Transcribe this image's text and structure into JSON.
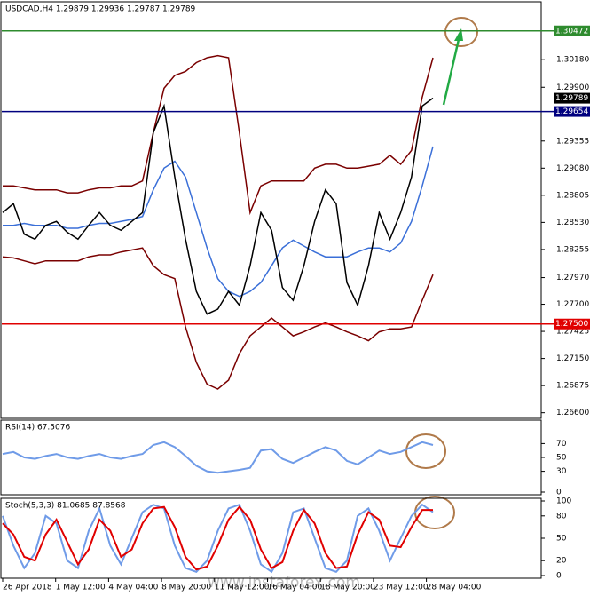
{
  "chart_data": [
    {
      "type": "line",
      "title": "USDCAD,H4  1.29879 1.29936 1.29787 1.29789",
      "ylim": [
        1.2657,
        1.3074
      ],
      "yticks": [
        {
          "value": 1.3018,
          "label": "1.30180"
        },
        {
          "value": 1.299,
          "label": "1.29900"
        },
        {
          "value": 1.29355,
          "label": "1.29355"
        },
        {
          "value": 1.2908,
          "label": "1.29080"
        },
        {
          "value": 1.28805,
          "label": "1.28805"
        },
        {
          "value": 1.2853,
          "label": "1.28530"
        },
        {
          "value": 1.28255,
          "label": "1.28255"
        },
        {
          "value": 1.2797,
          "label": "1.27970"
        },
        {
          "value": 1.277,
          "label": "1.27700"
        },
        {
          "value": 1.27425,
          "label": "1.27425"
        },
        {
          "value": 1.2715,
          "label": "1.27150"
        },
        {
          "value": 1.26875,
          "label": "1.26875"
        },
        {
          "value": 1.266,
          "label": "1.26600"
        }
      ],
      "series": [
        {
          "color": "#7a0000",
          "values": [
            1.289,
            1.289,
            1.2888,
            1.2886,
            1.2886,
            1.2886,
            1.2883,
            1.2883,
            1.2886,
            1.2888,
            1.2888,
            1.289,
            1.289,
            1.2895,
            1.2944,
            1.2989,
            1.3002,
            1.3006,
            1.3015,
            1.302,
            1.3022,
            1.302,
            1.2944,
            1.2863,
            1.289,
            1.2895,
            1.2895,
            1.2895,
            1.2895,
            1.2908,
            1.2912,
            1.2912,
            1.2908,
            1.2908,
            1.291,
            1.2912,
            1.2921,
            1.2912,
            1.2926,
            1.298,
            1.302
          ]
        },
        {
          "color": "#7a0000",
          "values": [
            1.2818,
            1.2817,
            1.2814,
            1.2811,
            1.2814,
            1.2814,
            1.2814,
            1.2814,
            1.2818,
            1.282,
            1.282,
            1.2823,
            1.2825,
            1.2827,
            1.2809,
            1.28,
            1.2796,
            1.2747,
            1.2711,
            1.2689,
            1.2684,
            1.2693,
            1.272,
            1.2738,
            1.2747,
            1.2756,
            1.2747,
            1.2738,
            1.2742,
            1.2747,
            1.2751,
            1.2747,
            1.2742,
            1.2738,
            1.2733,
            1.2742,
            1.2745,
            1.2745,
            1.2747,
            1.2774,
            1.28
          ]
        },
        {
          "color": "#3a6fd8",
          "values": [
            1.285,
            1.285,
            1.2852,
            1.285,
            1.285,
            1.285,
            1.2847,
            1.2847,
            1.285,
            1.2852,
            1.2852,
            1.2854,
            1.2856,
            1.2859,
            1.2886,
            1.2908,
            1.2915,
            1.2899,
            1.2863,
            1.2827,
            1.2796,
            1.2783,
            1.2778,
            1.2783,
            1.2792,
            1.2809,
            1.2827,
            1.2835,
            1.2829,
            1.2823,
            1.2818,
            1.2818,
            1.2818,
            1.2823,
            1.2827,
            1.2827,
            1.2823,
            1.2832,
            1.2854,
            1.289,
            1.293
          ]
        },
        {
          "color": "#000000",
          "values": [
            1.2863,
            1.2872,
            1.2841,
            1.2836,
            1.285,
            1.2854,
            1.2843,
            1.2836,
            1.285,
            1.2863,
            1.285,
            1.2845,
            1.2854,
            1.2863,
            1.2944,
            1.2971,
            1.2899,
            1.2836,
            1.2783,
            1.276,
            1.2765,
            1.2783,
            1.2769,
            1.2809,
            1.2863,
            1.2845,
            1.2787,
            1.2774,
            1.2809,
            1.2854,
            1.2886,
            1.2872,
            1.2792,
            1.2769,
            1.2809,
            1.2863,
            1.2836,
            1.2863,
            1.2899,
            1.2971,
            1.2979
          ]
        }
      ],
      "levels": [
        {
          "value": 1.30472,
          "label": "1.30472",
          "color": "#2e8b2e"
        },
        {
          "value": 1.29654,
          "label": "1.29654",
          "color": "#00007f"
        },
        {
          "value": 1.275,
          "label": "1.27500",
          "color": "#e00000"
        }
      ],
      "price_label": {
        "value": 1.29789,
        "label": "1.29789"
      }
    },
    {
      "type": "line",
      "title": "RSI(14) 67.5076",
      "ylim": [
        0,
        100
      ],
      "yticks": [
        70,
        50,
        30,
        0
      ],
      "series": [
        {
          "color": "#6f9be8",
          "values": [
            55,
            58,
            50,
            48,
            52,
            55,
            50,
            48,
            52,
            55,
            50,
            48,
            52,
            55,
            68,
            72,
            65,
            52,
            38,
            30,
            28,
            30,
            32,
            35,
            60,
            62,
            48,
            42,
            50,
            58,
            65,
            60,
            45,
            40,
            50,
            60,
            55,
            58,
            65,
            72,
            68
          ]
        }
      ]
    },
    {
      "type": "line",
      "title": "Stoch(5,3,3) 81.0685 87.8568",
      "ylim": [
        0,
        100
      ],
      "yticks": [
        100,
        80,
        50,
        20,
        0
      ],
      "series": [
        {
          "color": "#6f9be8",
          "values": [
            80,
            40,
            10,
            30,
            80,
            70,
            20,
            10,
            60,
            90,
            40,
            15,
            50,
            85,
            95,
            90,
            40,
            10,
            5,
            20,
            60,
            90,
            95,
            60,
            15,
            5,
            30,
            85,
            90,
            50,
            10,
            5,
            20,
            80,
            90,
            60,
            20,
            50,
            80,
            95,
            85
          ]
        },
        {
          "color": "#e00000",
          "values": [
            70,
            55,
            25,
            20,
            55,
            75,
            45,
            15,
            35,
            75,
            60,
            25,
            35,
            70,
            90,
            92,
            65,
            25,
            8,
            12,
            40,
            75,
            92,
            75,
            35,
            10,
            18,
            60,
            88,
            70,
            30,
            10,
            12,
            55,
            85,
            75,
            40,
            38,
            65,
            88,
            88
          ]
        }
      ]
    }
  ],
  "x_axis_labels": [
    "26 Apr 2018",
    "1 May 12:00",
    "4 May 04:00",
    "8 May 20:00",
    "11 May 12:00",
    "16 May 04:00",
    "18 May 20:00",
    "23 May 12:00",
    "28 May 04:00"
  ],
  "watermark": "www.instaforex.com"
}
